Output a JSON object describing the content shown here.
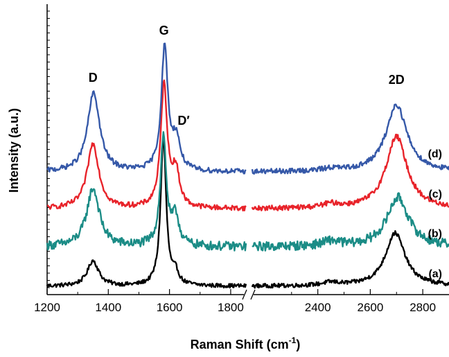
{
  "chart_data": {
    "type": "line",
    "xlabel": "Raman Shift (cm",
    "xlabel_sup": "-1",
    "xlabel_close": ")",
    "ylabel": "Intensity (a.u.)",
    "x_ticks": [
      "1200",
      "1400",
      "1600",
      "1800",
      "2400",
      "2600",
      "2800"
    ],
    "axis_break": {
      "left_range": [
        1200,
        1850
      ],
      "right_range": [
        2150,
        2900
      ]
    },
    "yticks_shown": false,
    "peak_labels": [
      {
        "text": "D",
        "x": 1350
      },
      {
        "text": "G",
        "x": 1582
      },
      {
        "text": "D′",
        "x": 1620
      },
      {
        "text": "2D",
        "x": 2700
      }
    ],
    "series": [
      {
        "name": "(a)",
        "color": "#000000",
        "offset": 0,
        "peaks": [
          [
            1350,
            1.0,
            22
          ],
          [
            1580,
            5.8,
            11
          ],
          [
            1620,
            0.45,
            12
          ],
          [
            2450,
            0.12,
            40
          ],
          [
            2695,
            2.1,
            45
          ]
        ],
        "noise": 0.08
      },
      {
        "name": "(b)",
        "color": "#1b8c86",
        "offset": 1.55,
        "peaks": [
          [
            1350,
            2.3,
            25
          ],
          [
            1580,
            4.3,
            12
          ],
          [
            1620,
            1.1,
            14
          ],
          [
            2450,
            0.2,
            40
          ],
          [
            2705,
            1.95,
            50
          ]
        ],
        "noise": 0.18
      },
      {
        "name": "(c)",
        "color": "#e8232a",
        "offset": 3.05,
        "peaks": [
          [
            1350,
            2.55,
            23
          ],
          [
            1582,
            4.8,
            13
          ],
          [
            1620,
            1.4,
            15
          ],
          [
            2450,
            0.15,
            40
          ],
          [
            2700,
            2.85,
            48
          ]
        ],
        "noise": 0.1
      },
      {
        "name": "(d)",
        "color": "#3558a8",
        "offset": 4.5,
        "peaks": [
          [
            1352,
            3.1,
            24
          ],
          [
            1584,
            4.85,
            13
          ],
          [
            1622,
            1.2,
            15
          ],
          [
            2450,
            0.1,
            40
          ],
          [
            2700,
            2.65,
            48
          ]
        ],
        "noise": 0.1
      }
    ]
  }
}
